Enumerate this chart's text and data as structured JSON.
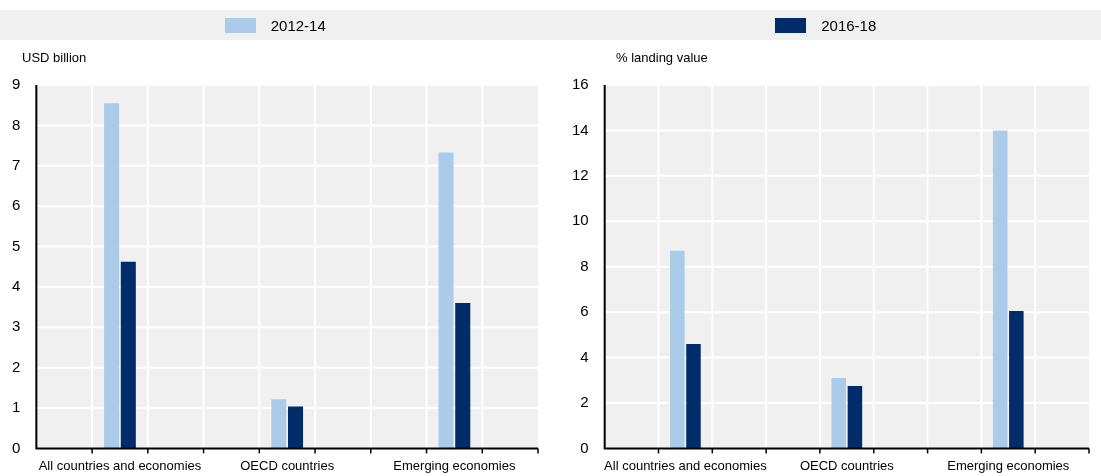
{
  "chart_data": [
    {
      "type": "bar",
      "ylabel": "USD billion",
      "categories": [
        "All countries and economies",
        "OECD countries",
        "Emerging economies"
      ],
      "series": [
        {
          "name": "2012-14",
          "color": "#abcbeb",
          "values": [
            8.55,
            1.22,
            7.33
          ]
        },
        {
          "name": "2016-18",
          "color": "#002d6a",
          "values": [
            4.62,
            1.04,
            3.6
          ]
        }
      ],
      "ylim": [
        0,
        9
      ],
      "yticks": [
        0,
        1,
        2,
        3,
        4,
        5,
        6,
        7,
        8,
        9
      ],
      "grid": true,
      "legend": "top"
    },
    {
      "type": "bar",
      "ylabel": "%  landing value",
      "categories": [
        "All countries and economies",
        "OECD countries",
        "Emerging economies"
      ],
      "series": [
        {
          "name": "2012-14",
          "color": "#abcbeb",
          "values": [
            8.7,
            3.1,
            14.0
          ]
        },
        {
          "name": "2016-18",
          "color": "#002d6a",
          "values": [
            4.6,
            2.75,
            6.05
          ]
        }
      ],
      "ylim": [
        0,
        16
      ],
      "yticks": [
        0,
        2,
        4,
        6,
        8,
        10,
        12,
        14,
        16
      ],
      "grid": true
    }
  ]
}
